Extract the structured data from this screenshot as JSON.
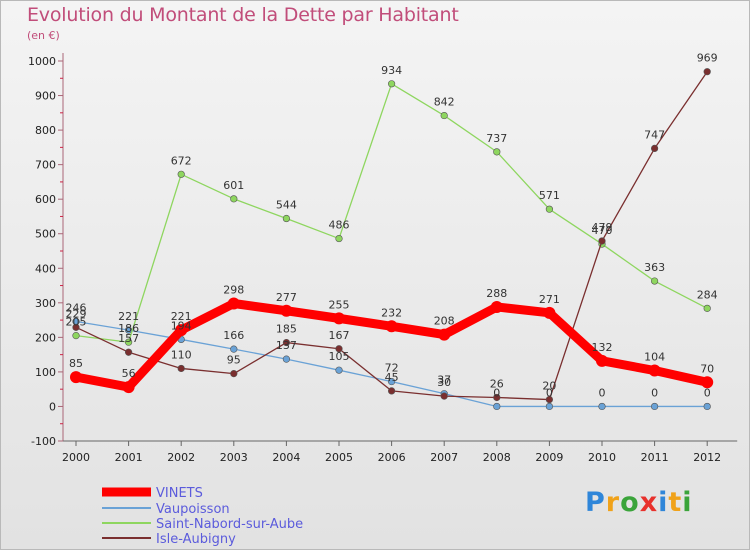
{
  "chart_data": {
    "type": "line",
    "title": "Evolution du Montant de la Dette par Habitant",
    "subtitle": "(en €)",
    "x": [
      "2000",
      "2001",
      "2002",
      "2003",
      "2004",
      "2005",
      "2006",
      "2007",
      "2008",
      "2009",
      "2010",
      "2011",
      "2012"
    ],
    "y_ticks": [
      "-100",
      "0",
      "100",
      "200",
      "300",
      "400",
      "500",
      "600",
      "700",
      "800",
      "900",
      "1000"
    ],
    "ylim": [
      -100,
      1000
    ],
    "grid": false,
    "legend_position": "bottom-left",
    "series": [
      {
        "name": "VINETS",
        "color": "#ff0000",
        "values": [
          85,
          56,
          221,
          298,
          277,
          255,
          232,
          208,
          288,
          271,
          132,
          104,
          70
        ],
        "labels": [
          "85",
          "56",
          "221",
          "298",
          "277",
          "255",
          "232",
          "208",
          "288",
          "271",
          "132",
          "104",
          "70"
        ]
      },
      {
        "name": "Vaupoisson",
        "color": "#6aa2d6",
        "values": [
          246,
          221,
          194,
          166,
          137,
          105,
          72,
          37,
          0,
          0,
          0,
          0,
          0
        ],
        "labels": [
          "246",
          "221",
          "194",
          "166",
          "137",
          "105",
          "72",
          "37",
          "0",
          "0",
          "0",
          "0",
          "0"
        ]
      },
      {
        "name": "Saint-Nabord-sur-Aube",
        "color": "#8ed65f",
        "values": [
          205,
          186,
          672,
          601,
          544,
          486,
          934,
          842,
          737,
          571,
          470,
          363,
          284
        ],
        "labels": [
          "205",
          "186",
          "672",
          "601",
          "544",
          "486",
          "934",
          "842",
          "737",
          "571",
          "470",
          "363",
          "284"
        ]
      },
      {
        "name": "Isle-Aubigny",
        "color": "#7a2f2f",
        "values": [
          229,
          157,
          110,
          95,
          185,
          167,
          45,
          30,
          26,
          20,
          479,
          747,
          969
        ],
        "labels": [
          "229",
          "157",
          "110",
          "95",
          "185",
          "167",
          "45",
          "30",
          "26",
          "20",
          "479",
          "747",
          "969"
        ]
      }
    ]
  },
  "logo": {
    "letters": [
      "P",
      "r",
      "o",
      "x",
      "i",
      "t",
      "i"
    ],
    "colors": [
      "#2f86d9",
      "#f0a21a",
      "#3aa43a",
      "#e8312c",
      "#2f86d9",
      "#f0a21a",
      "#3aa43a"
    ]
  }
}
